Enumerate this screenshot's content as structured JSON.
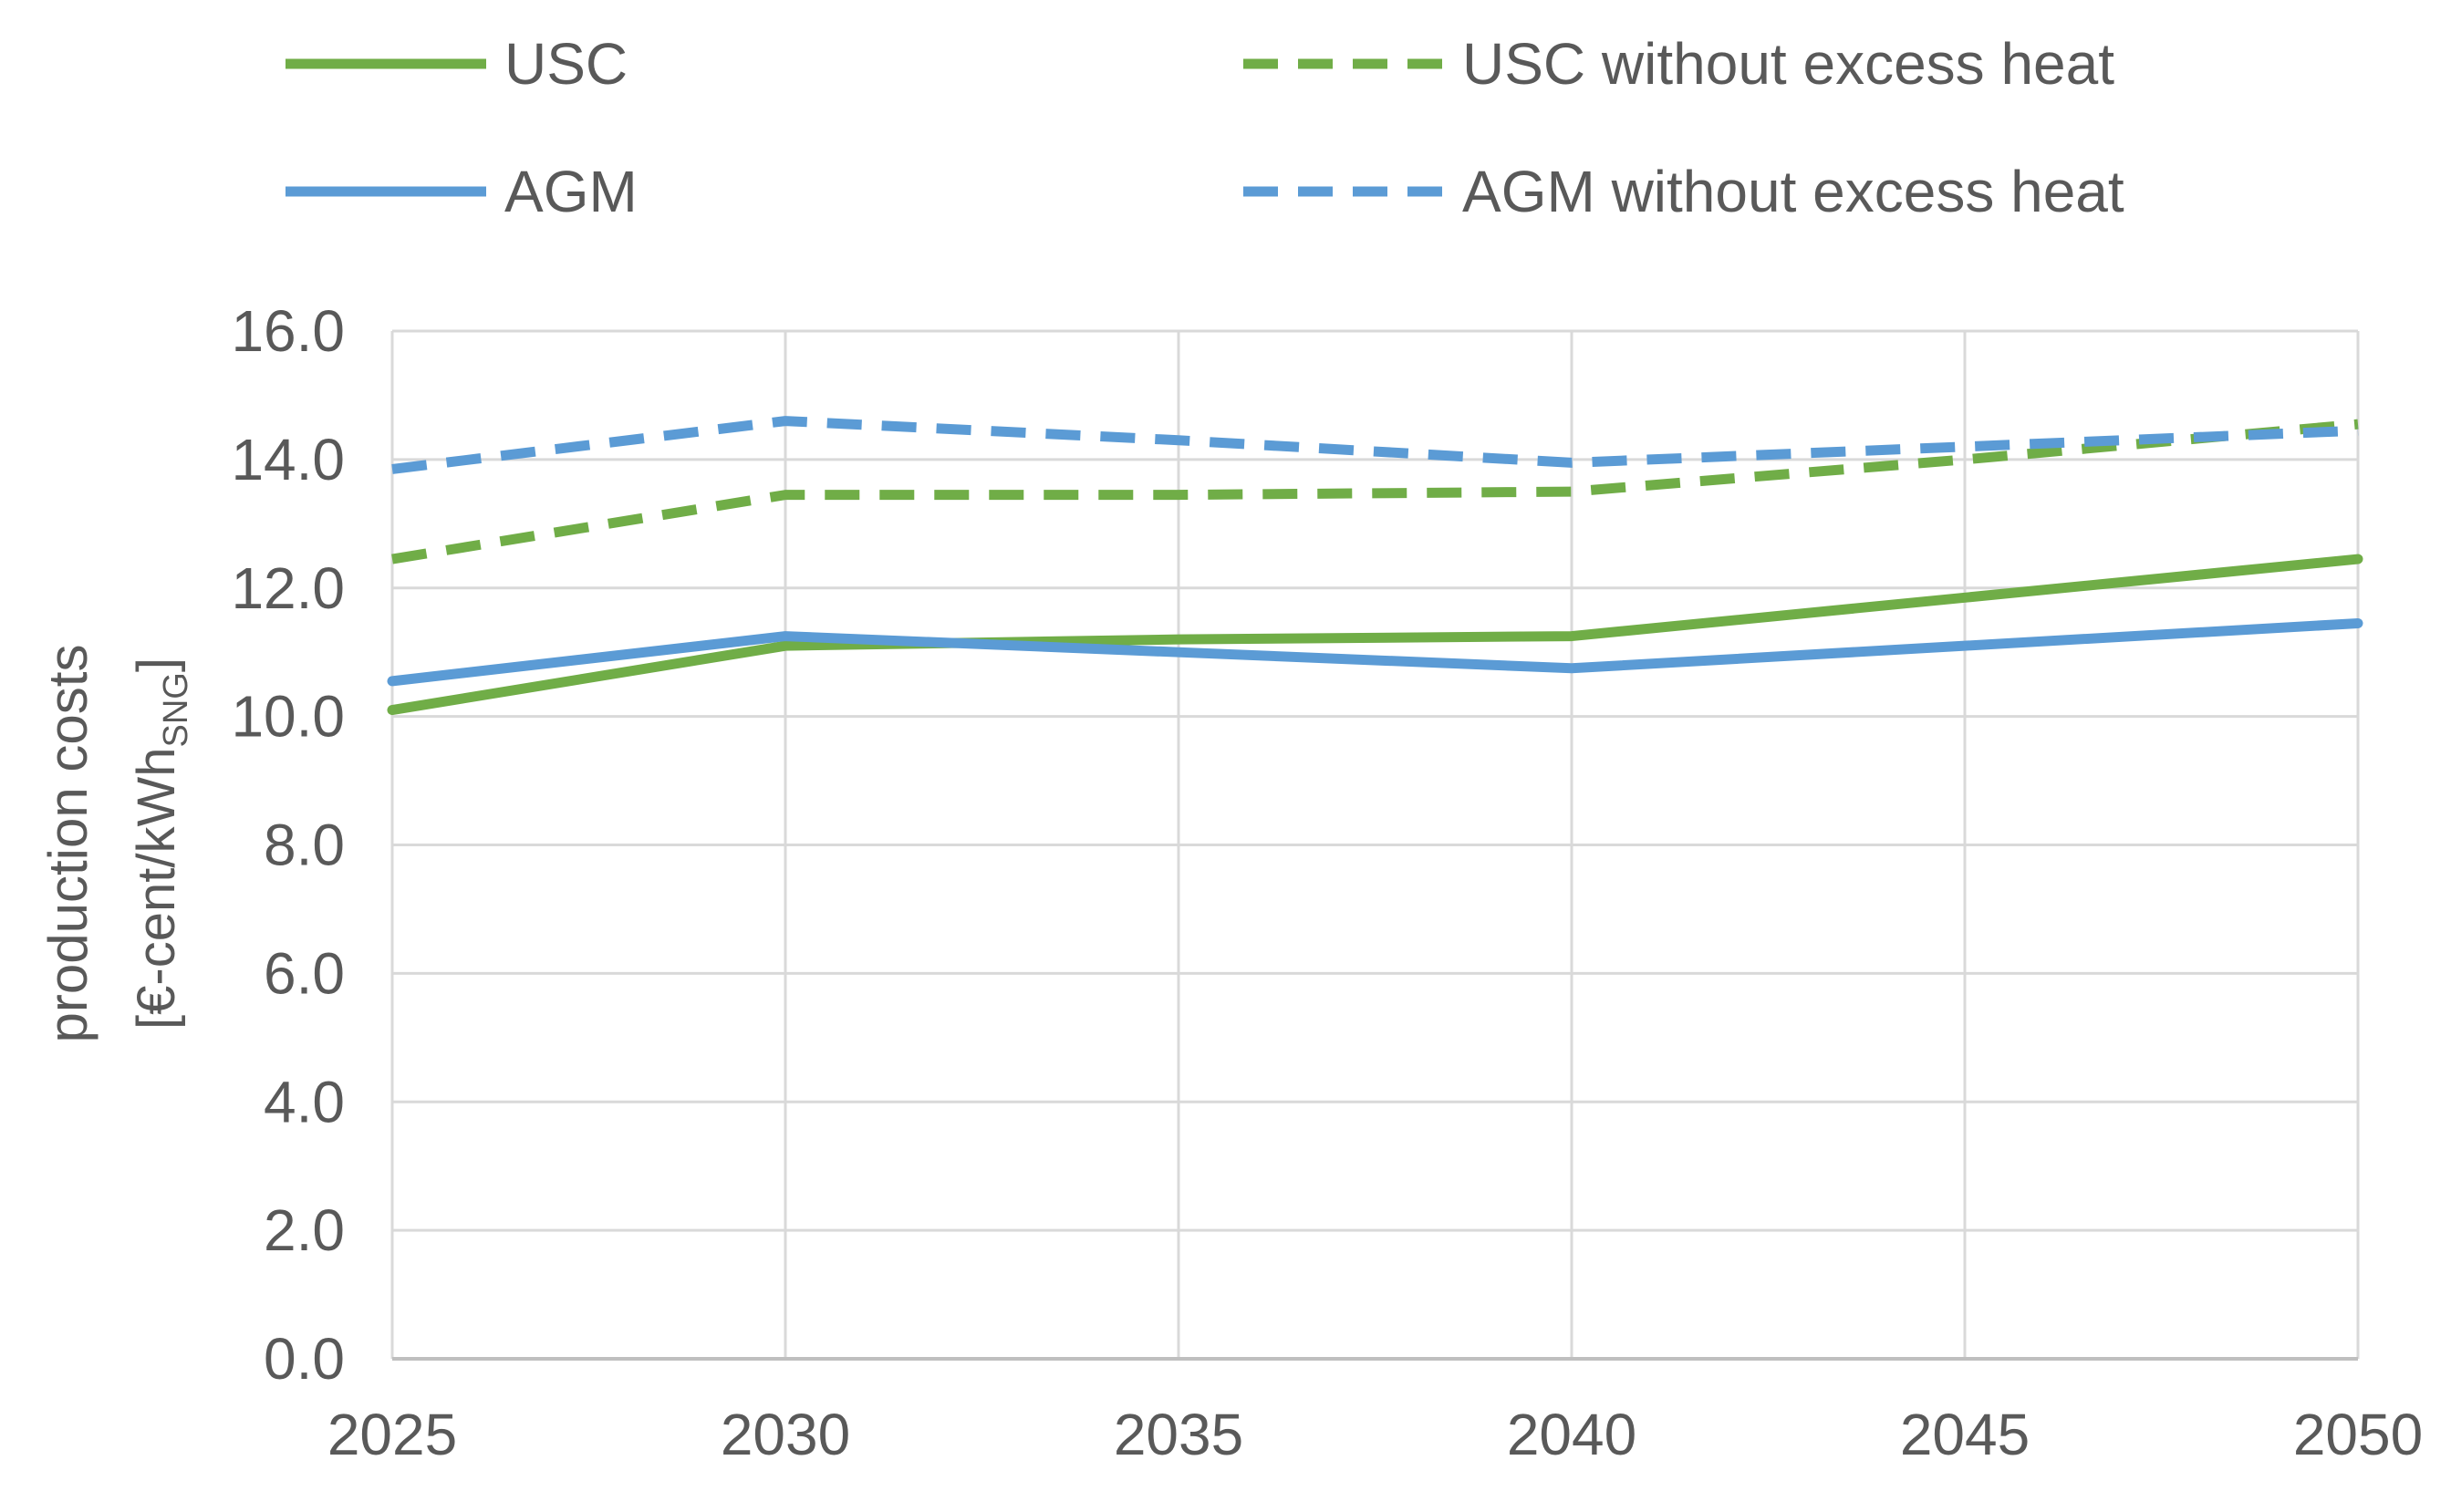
{
  "chart_data": {
    "type": "line",
    "title": "",
    "xlabel": "",
    "ylabel": "production costs",
    "ylabel_unit_prefix": "[€-cent/kWh",
    "ylabel_unit_subscript": "SNG",
    "ylabel_unit_suffix": "]",
    "x": [
      2025,
      2030,
      2035,
      2040,
      2045,
      2050
    ],
    "x_tick_labels": [
      "2025",
      "2030",
      "2035",
      "2040",
      "2045",
      "2050"
    ],
    "ylim": [
      0,
      16
    ],
    "y_ticks": [
      0,
      2,
      4,
      6,
      8,
      10,
      12,
      14,
      16
    ],
    "y_tick_labels": [
      "0.0",
      "2.0",
      "4.0",
      "6.0",
      "8.0",
      "10.0",
      "12.0",
      "14.0",
      "16.0"
    ],
    "grid": true,
    "legend_position": "top",
    "series": [
      {
        "name": "USC",
        "color": "#70AD47",
        "dash": "solid",
        "values": [
          10.1,
          11.1,
          11.2,
          11.25,
          11.85,
          12.45
        ]
      },
      {
        "name": "USC without excess heat",
        "color": "#70AD47",
        "dash": "dashed",
        "values": [
          12.45,
          13.45,
          13.45,
          13.5,
          14.0,
          14.55
        ]
      },
      {
        "name": "AGM",
        "color": "#5B9BD5",
        "dash": "solid",
        "values": [
          10.55,
          11.25,
          11.0,
          10.75,
          11.1,
          11.45
        ]
      },
      {
        "name": "AGM without excess heat",
        "color": "#5B9BD5",
        "dash": "dashed",
        "values": [
          13.85,
          14.6,
          14.3,
          13.95,
          14.2,
          14.45
        ]
      }
    ]
  }
}
